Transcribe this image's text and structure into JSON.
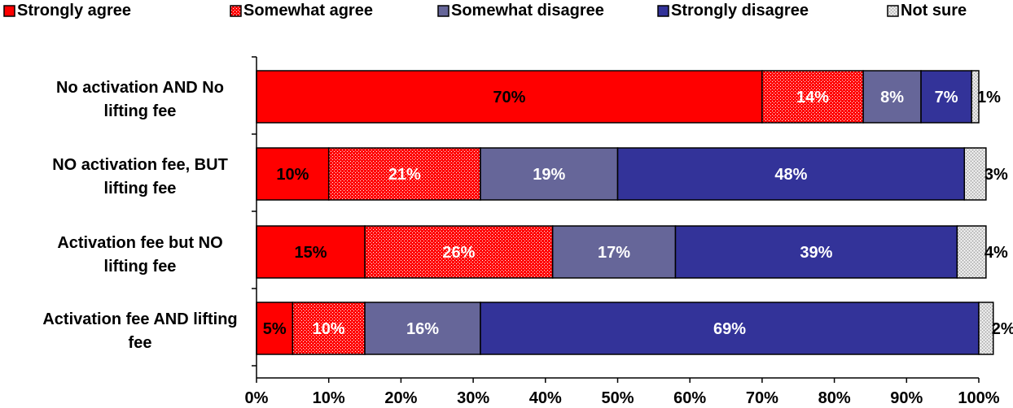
{
  "chart_data": {
    "type": "bar",
    "orientation": "horizontal",
    "stacked": true,
    "categories": [
      [
        "No activation AND No",
        "lifting fee"
      ],
      [
        "NO activation fee, BUT",
        "lifting fee"
      ],
      [
        "Activation fee but NO",
        "lifting fee"
      ],
      [
        "Activation fee AND lifting",
        "fee"
      ]
    ],
    "series": [
      {
        "name": "Strongly agree",
        "color": "#ff0000",
        "pattern": "solid",
        "values": [
          70,
          10,
          15,
          5
        ],
        "labels": [
          "70%",
          "10%",
          "15%",
          "5%"
        ]
      },
      {
        "name": "Somewhat agree",
        "color": "#ff0000",
        "pattern": "dots-white",
        "values": [
          14,
          21,
          26,
          10
        ],
        "labels": [
          "14%",
          "21%",
          "26%",
          "10%"
        ]
      },
      {
        "name": "Somewhat disagree",
        "color": "#666699",
        "pattern": "solid",
        "values": [
          8,
          19,
          17,
          16
        ],
        "labels": [
          "8%",
          "19%",
          "17%",
          "16%"
        ]
      },
      {
        "name": "Strongly disagree",
        "color": "#333399",
        "pattern": "solid",
        "values": [
          7,
          48,
          39,
          69
        ],
        "labels": [
          "7%",
          "48%",
          "39%",
          "69%"
        ]
      },
      {
        "name": "Not sure",
        "color": "#c0c0c0",
        "pattern": "dots-light",
        "values": [
          1,
          3,
          4,
          2
        ],
        "labels": [
          "1%",
          "3%",
          "4%",
          "2%"
        ]
      }
    ],
    "xlim": [
      0,
      100
    ],
    "xticks": [
      "0%",
      "10%",
      "20%",
      "30%",
      "40%",
      "50%",
      "60%",
      "70%",
      "80%",
      "90%",
      "100%"
    ],
    "legend_position": "top",
    "grid": false
  }
}
